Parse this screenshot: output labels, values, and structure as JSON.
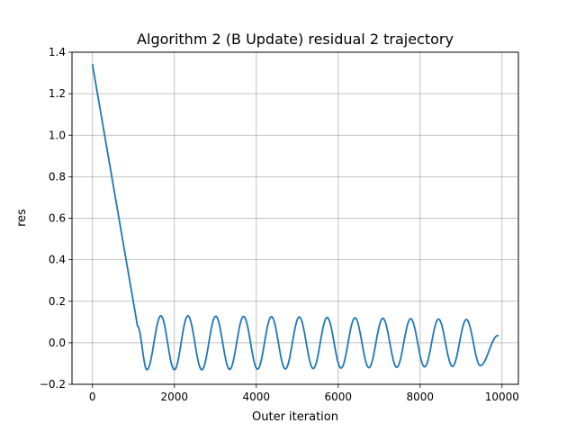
{
  "chart_data": {
    "type": "line",
    "title": "Algorithm 2 (B Update) residual 2 trajectory",
    "xlabel": "Outer iteration",
    "ylabel": "res",
    "xlim": [
      -500,
      10400
    ],
    "ylim": [
      -0.2,
      1.4
    ],
    "xticks": [
      0,
      2000,
      4000,
      6000,
      8000,
      10000
    ],
    "xtick_labels": [
      "0",
      "2000",
      "4000",
      "6000",
      "8000",
      "10000"
    ],
    "yticks": [
      -0.2,
      0.0,
      0.2,
      0.4,
      0.6,
      0.8,
      1.0,
      1.2,
      1.4
    ],
    "ytick_labels": [
      "−0.2",
      "0.0",
      "0.2",
      "0.4",
      "0.6",
      "0.8",
      "1.0",
      "1.2",
      "1.4"
    ],
    "grid": true,
    "series": [
      {
        "color": "#1f77b4",
        "x": [
          0,
          1100,
          1330,
          1670,
          2000,
          2330,
          2670,
          3010,
          3350,
          3690,
          4030,
          4370,
          4710,
          5050,
          5390,
          5730,
          6070,
          6410,
          6750,
          7090,
          7430,
          7770,
          8110,
          8450,
          8790,
          9130,
          9470,
          9900
        ],
        "y": [
          1.34,
          0.08,
          -0.13,
          0.13,
          -0.13,
          0.13,
          -0.13,
          0.128,
          -0.128,
          0.127,
          -0.127,
          0.126,
          -0.126,
          0.124,
          -0.124,
          0.122,
          -0.122,
          0.12,
          -0.12,
          0.118,
          -0.118,
          0.116,
          -0.116,
          0.114,
          -0.114,
          0.112,
          -0.11,
          0.035
        ]
      }
    ]
  }
}
